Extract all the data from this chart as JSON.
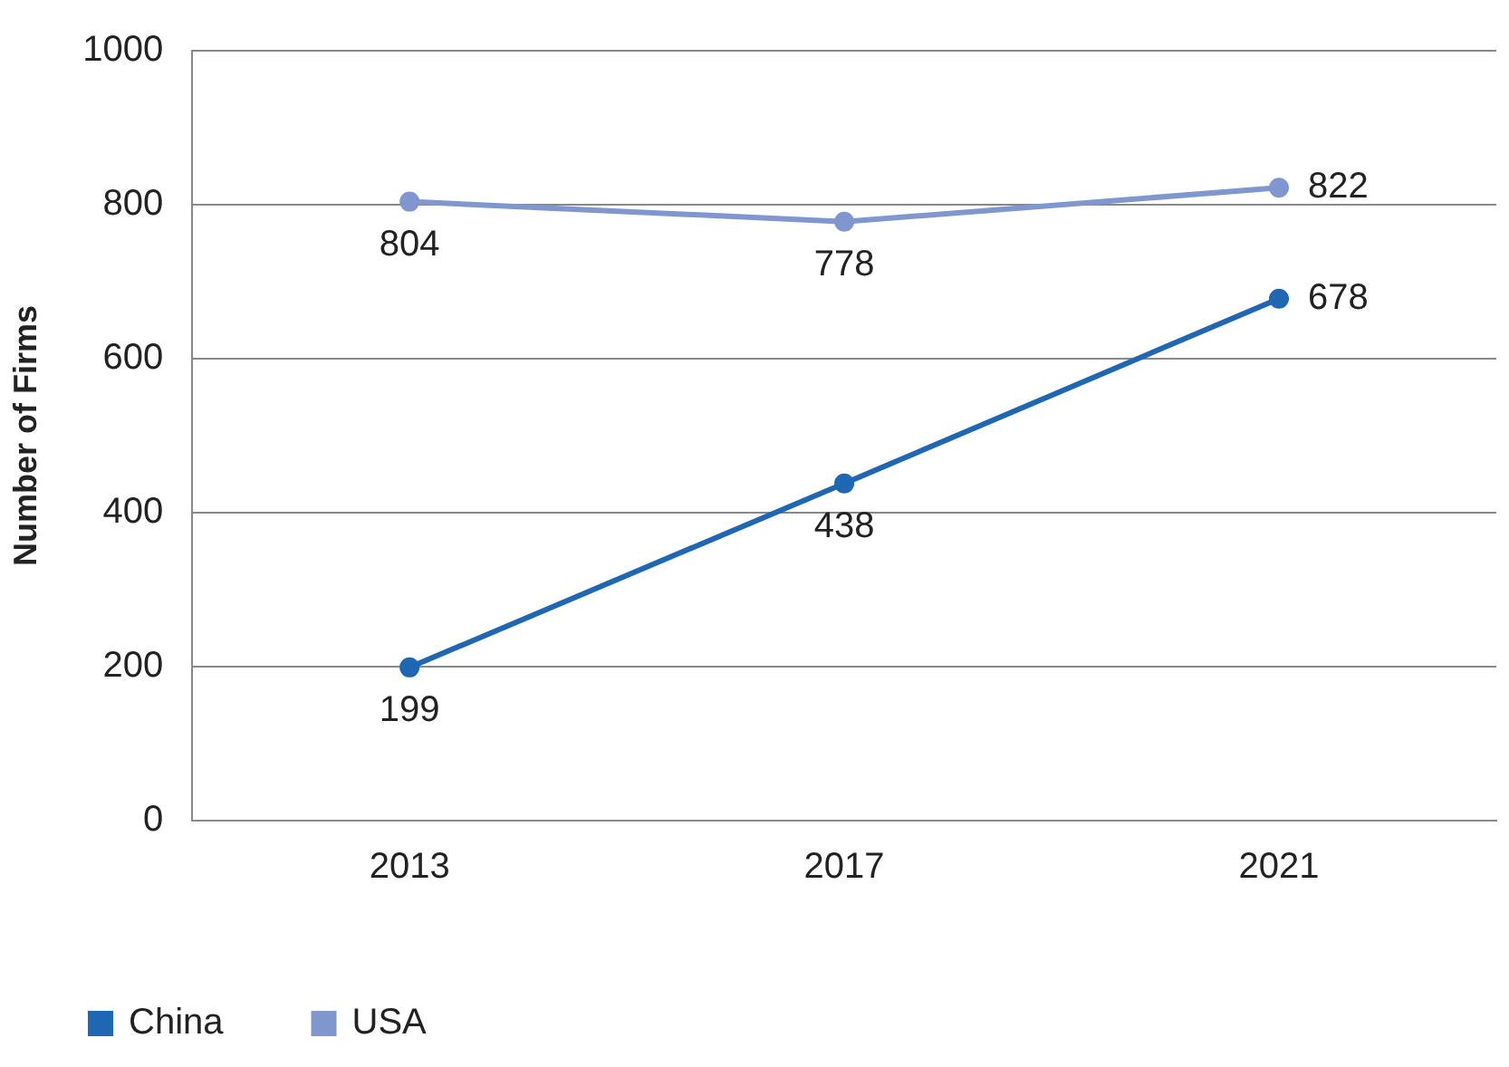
{
  "chart_data": {
    "type": "line",
    "ylabel": "Number of Firms",
    "categories": [
      "2013",
      "2017",
      "2021"
    ],
    "series": [
      {
        "name": "China",
        "color": "#1f66b3",
        "values": [
          199,
          438,
          678
        ]
      },
      {
        "name": "USA",
        "color": "#7f96cf",
        "values": [
          804,
          778,
          822
        ]
      }
    ],
    "ylim": [
      0,
      1000
    ],
    "yticks": [
      0,
      200,
      400,
      600,
      800,
      1000
    ],
    "grid": "y",
    "legend": "bottom left",
    "marker": "circle",
    "line_style": "solid",
    "data_labels": true
  }
}
